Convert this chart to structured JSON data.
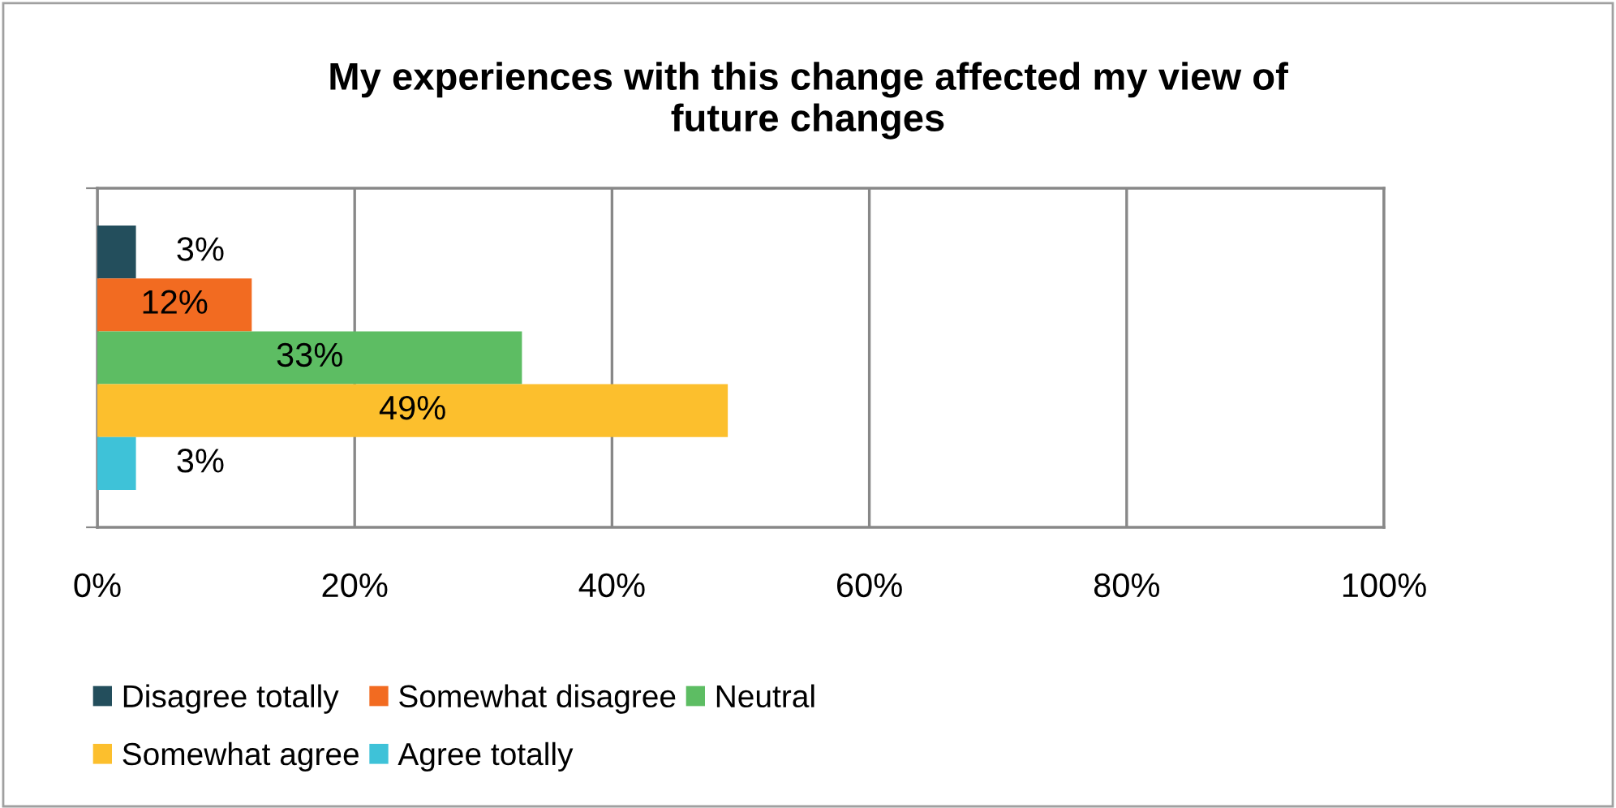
{
  "chart_data": {
    "type": "bar",
    "orientation": "horizontal",
    "title": "My experiences with this change affected my view of\nfuture changes",
    "categories": [
      null
    ],
    "series": [
      {
        "name": "Disagree totally",
        "color": "#234e5c",
        "values": [
          3
        ],
        "value_labels": [
          "3%"
        ]
      },
      {
        "name": "Somewhat disagree",
        "color": "#f26b21",
        "values": [
          12
        ],
        "value_labels": [
          "12%"
        ]
      },
      {
        "name": "Neutral",
        "color": "#5dbd63",
        "values": [
          33
        ],
        "value_labels": [
          "33%"
        ]
      },
      {
        "name": "Somewhat agree",
        "color": "#fcbf2d",
        "values": [
          49
        ],
        "value_labels": [
          "49%"
        ]
      },
      {
        "name": "Agree totally",
        "color": "#3ec2d8",
        "values": [
          3
        ],
        "value_labels": [
          "3%"
        ]
      }
    ],
    "xlim": [
      0,
      100
    ],
    "xticks": [
      {
        "value": 0,
        "label": "0%"
      },
      {
        "value": 20,
        "label": "20%"
      },
      {
        "value": 40,
        "label": "40%"
      },
      {
        "value": 60,
        "label": "60%"
      },
      {
        "value": 80,
        "label": "80%"
      },
      {
        "value": 100,
        "label": "100%"
      }
    ],
    "grid": "x",
    "legend": "bottom"
  }
}
